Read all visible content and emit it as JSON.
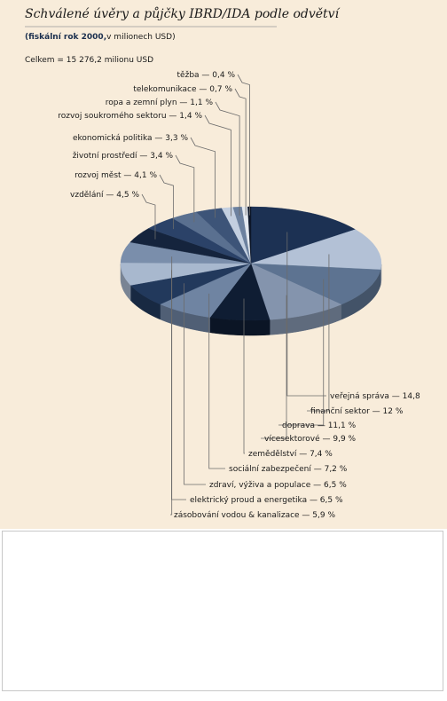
{
  "chart_data": {
    "type": "pie",
    "title": "Schválené úvěry a půjčky IBRD/IDA podle odvětví",
    "subtitle_bold": "(fiskální rok 2000,",
    "subtitle": "v milionech USD)",
    "total": "Celkem = 15 276,2 milionu USD",
    "labels": [
      "veřejná správa — 14,8",
      "finanční sektor — 12 %",
      "doprava — 11,1 %",
      "vícesektorové — 9,9 %",
      "zemědělství — 7,4 %",
      "sociální zabezpečení — 7,2 %",
      "zdraví, výživa a populace — 6,5 %",
      "elektrický proud a energetika — 6,5 %",
      "zásobování vodou & kanalizace — 5,9 %",
      "vzdělání — 4,5 %",
      "rozvoj měst — 4,1 %",
      "životní prostředí — 3,4 %",
      "ekonomická politika — 3,3 %",
      "rozvoj soukromého sektoru — 1,4 %",
      "ropa a zemní plyn — 1,1 %",
      "telekomunikace — 0,7 %",
      "těžba — 0,4 %"
    ],
    "values": [
      14.8,
      12,
      11.1,
      9.9,
      7.4,
      7.2,
      6.5,
      6.5,
      5.9,
      4.5,
      4.1,
      3.4,
      3.3,
      1.4,
      1.1,
      0.7,
      0.4
    ],
    "colors": [
      "#1c3153",
      "#b3c1d6",
      "#5d7391",
      "#8494ad",
      "#0f1d33",
      "#6f84a2",
      "#22395c",
      "#a8b8ce",
      "#7a8eab",
      "#15243d",
      "#2b4268",
      "#5a7090",
      "#3d5478",
      "#c3cfe0",
      "#6c819f",
      "#e3e8ef",
      "#0c1628"
    ]
  }
}
